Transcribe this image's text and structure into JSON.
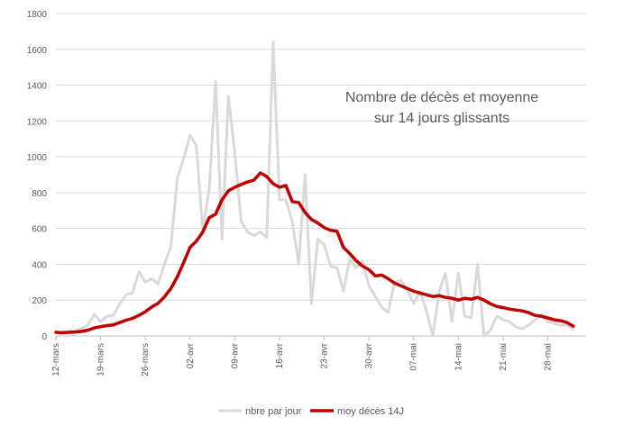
{
  "chart_data": {
    "type": "line",
    "title_lines": [
      "Nombre de décès et moyenne",
      "sur 14 jours glissants"
    ],
    "xlabel": "",
    "ylabel": "",
    "ylim": [
      0,
      1800
    ],
    "y_ticks": [
      0,
      200,
      400,
      600,
      800,
      1000,
      1200,
      1400,
      1600,
      1800
    ],
    "x_ticks": [
      {
        "day": 0,
        "label": "12-mars"
      },
      {
        "day": 7,
        "label": "19-mars"
      },
      {
        "day": 14,
        "label": "26-mars"
      },
      {
        "day": 21,
        "label": "02-avr"
      },
      {
        "day": 28,
        "label": "09-avr"
      },
      {
        "day": 35,
        "label": "16-avr"
      },
      {
        "day": 42,
        "label": "23-avr"
      },
      {
        "day": 49,
        "label": "30-avr"
      },
      {
        "day": 56,
        "label": "07-mai"
      },
      {
        "day": 63,
        "label": "14-mai"
      },
      {
        "day": 70,
        "label": "21-mai"
      },
      {
        "day": 77,
        "label": "28-mai"
      }
    ],
    "x_range": [
      0,
      83
    ],
    "legend_position": "bottom",
    "grid": true,
    "series": [
      {
        "name": "nbre par jour",
        "color": "#d9d9d9",
        "values": [
          20,
          15,
          25,
          30,
          40,
          60,
          120,
          80,
          110,
          115,
          180,
          230,
          240,
          360,
          300,
          320,
          290,
          400,
          500,
          880,
          990,
          1120,
          1060,
          580,
          820,
          1420,
          540,
          1340,
          1020,
          640,
          580,
          560,
          580,
          550,
          1640,
          760,
          760,
          640,
          400,
          900,
          180,
          540,
          510,
          390,
          380,
          250,
          430,
          380,
          420,
          280,
          220,
          160,
          130,
          300,
          310,
          260,
          180,
          250,
          140,
          0,
          250,
          350,
          80,
          350,
          110,
          100,
          400,
          0,
          30,
          110,
          90,
          80,
          50,
          40,
          60,
          90,
          120,
          80,
          70,
          60,
          60,
          40
        ]
      },
      {
        "name": "moy décès 14J",
        "color": "#c00000",
        "values": [
          20,
          18,
          20,
          22,
          25,
          32,
          45,
          52,
          58,
          62,
          75,
          88,
          98,
          115,
          135,
          162,
          182,
          218,
          265,
          330,
          410,
          495,
          530,
          580,
          660,
          680,
          760,
          810,
          830,
          845,
          860,
          870,
          910,
          890,
          850,
          830,
          840,
          750,
          745,
          690,
          650,
          630,
          605,
          590,
          585,
          495,
          460,
          420,
          390,
          370,
          335,
          340,
          320,
          295,
          280,
          265,
          250,
          240,
          230,
          220,
          225,
          215,
          210,
          200,
          210,
          205,
          215,
          200,
          180,
          165,
          158,
          150,
          145,
          140,
          130,
          115,
          110,
          100,
          90,
          85,
          75,
          55
        ]
      }
    ]
  }
}
